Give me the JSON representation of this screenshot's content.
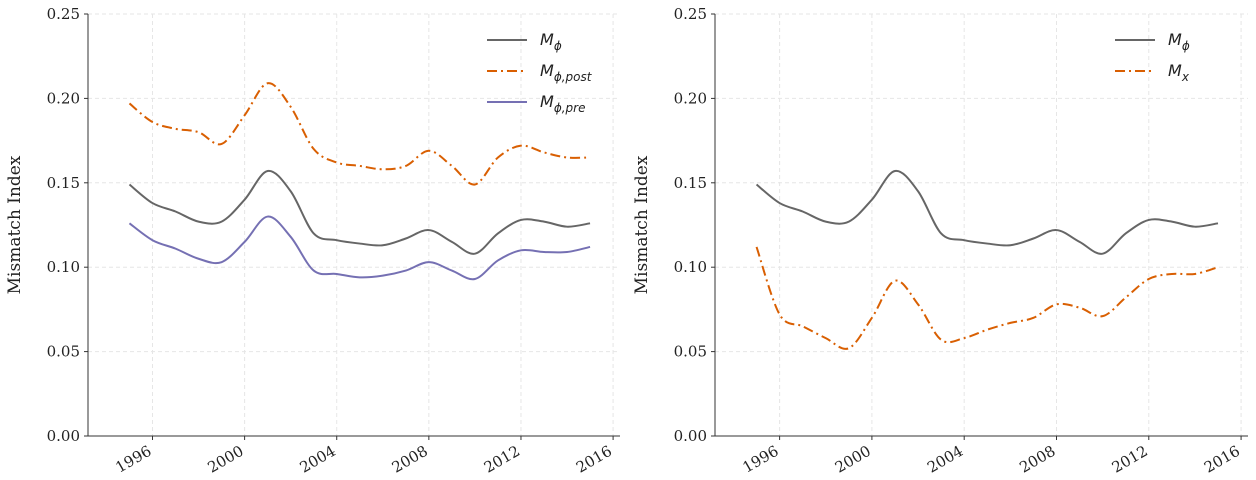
{
  "chart_data": [
    {
      "type": "line",
      "ylabel": "Mismatch Index",
      "x": [
        1995,
        1996,
        1997,
        1998,
        1999,
        2000,
        2001,
        2002,
        2003,
        2004,
        2005,
        2006,
        2007,
        2008,
        2009,
        2010,
        2011,
        2012,
        2013,
        2014,
        2015
      ],
      "xlim": [
        1993.2,
        2016.3
      ],
      "xticks": [
        1996,
        2000,
        2004,
        2008,
        2012,
        2016
      ],
      "ylim": [
        0,
        0.25
      ],
      "yticks": [
        {
          "value": 0,
          "label": "0.00"
        },
        {
          "value": 0.05,
          "label": "0.05"
        },
        {
          "value": 0.1,
          "label": "0.10"
        },
        {
          "value": 0.15,
          "label": "0.15"
        },
        {
          "value": 0.2,
          "label": "0.20"
        },
        {
          "value": 0.25,
          "label": "0.25"
        }
      ],
      "grid": true,
      "legend": "upper right",
      "series": [
        {
          "name": "Mϕ",
          "color": "#666666",
          "dash": "solid",
          "values": [
            0.149,
            0.138,
            0.133,
            0.127,
            0.127,
            0.14,
            0.157,
            0.145,
            0.12,
            0.116,
            0.114,
            0.113,
            0.117,
            0.122,
            0.115,
            0.108,
            0.12,
            0.128,
            0.127,
            0.124,
            0.126
          ]
        },
        {
          "name": "Mϕ,post",
          "color": "#d95f02",
          "dash": "dashdot",
          "values": [
            0.197,
            0.186,
            0.182,
            0.18,
            0.173,
            0.19,
            0.209,
            0.195,
            0.17,
            0.162,
            0.16,
            0.158,
            0.16,
            0.169,
            0.16,
            0.149,
            0.165,
            0.172,
            0.168,
            0.165,
            0.165
          ]
        },
        {
          "name": "Mϕ,pre",
          "color": "#7570b3",
          "dash": "solid",
          "values": [
            0.126,
            0.116,
            0.111,
            0.105,
            0.103,
            0.115,
            0.13,
            0.118,
            0.098,
            0.096,
            0.094,
            0.095,
            0.098,
            0.103,
            0.098,
            0.093,
            0.104,
            0.11,
            0.109,
            0.109,
            0.112
          ]
        }
      ]
    },
    {
      "type": "line",
      "ylabel": "Mismatch Index",
      "x": [
        1995,
        1996,
        1997,
        1998,
        1999,
        2000,
        2001,
        2002,
        2003,
        2004,
        2005,
        2006,
        2007,
        2008,
        2009,
        2010,
        2011,
        2012,
        2013,
        2014,
        2015
      ],
      "xlim": [
        1993.2,
        2016.3
      ],
      "xticks": [
        1996,
        2000,
        2004,
        2008,
        2012,
        2016
      ],
      "ylim": [
        0,
        0.25
      ],
      "yticks": [
        {
          "value": 0,
          "label": "0.00"
        },
        {
          "value": 0.05,
          "label": "0.05"
        },
        {
          "value": 0.1,
          "label": "0.10"
        },
        {
          "value": 0.15,
          "label": "0.15"
        },
        {
          "value": 0.2,
          "label": "0.20"
        },
        {
          "value": 0.25,
          "label": "0.25"
        }
      ],
      "grid": true,
      "legend": "upper right",
      "series": [
        {
          "name": "Mϕ",
          "color": "#666666",
          "dash": "solid",
          "values": [
            0.149,
            0.138,
            0.133,
            0.127,
            0.127,
            0.14,
            0.157,
            0.145,
            0.12,
            0.116,
            0.114,
            0.113,
            0.117,
            0.122,
            0.115,
            0.108,
            0.12,
            0.128,
            0.127,
            0.124,
            0.126
          ]
        },
        {
          "name": "Mx",
          "color": "#d95f02",
          "dash": "dashdot",
          "values": [
            0.112,
            0.072,
            0.065,
            0.058,
            0.052,
            0.07,
            0.092,
            0.078,
            0.057,
            0.058,
            0.063,
            0.067,
            0.07,
            0.078,
            0.076,
            0.071,
            0.082,
            0.093,
            0.096,
            0.096,
            0.1
          ]
        }
      ]
    }
  ]
}
